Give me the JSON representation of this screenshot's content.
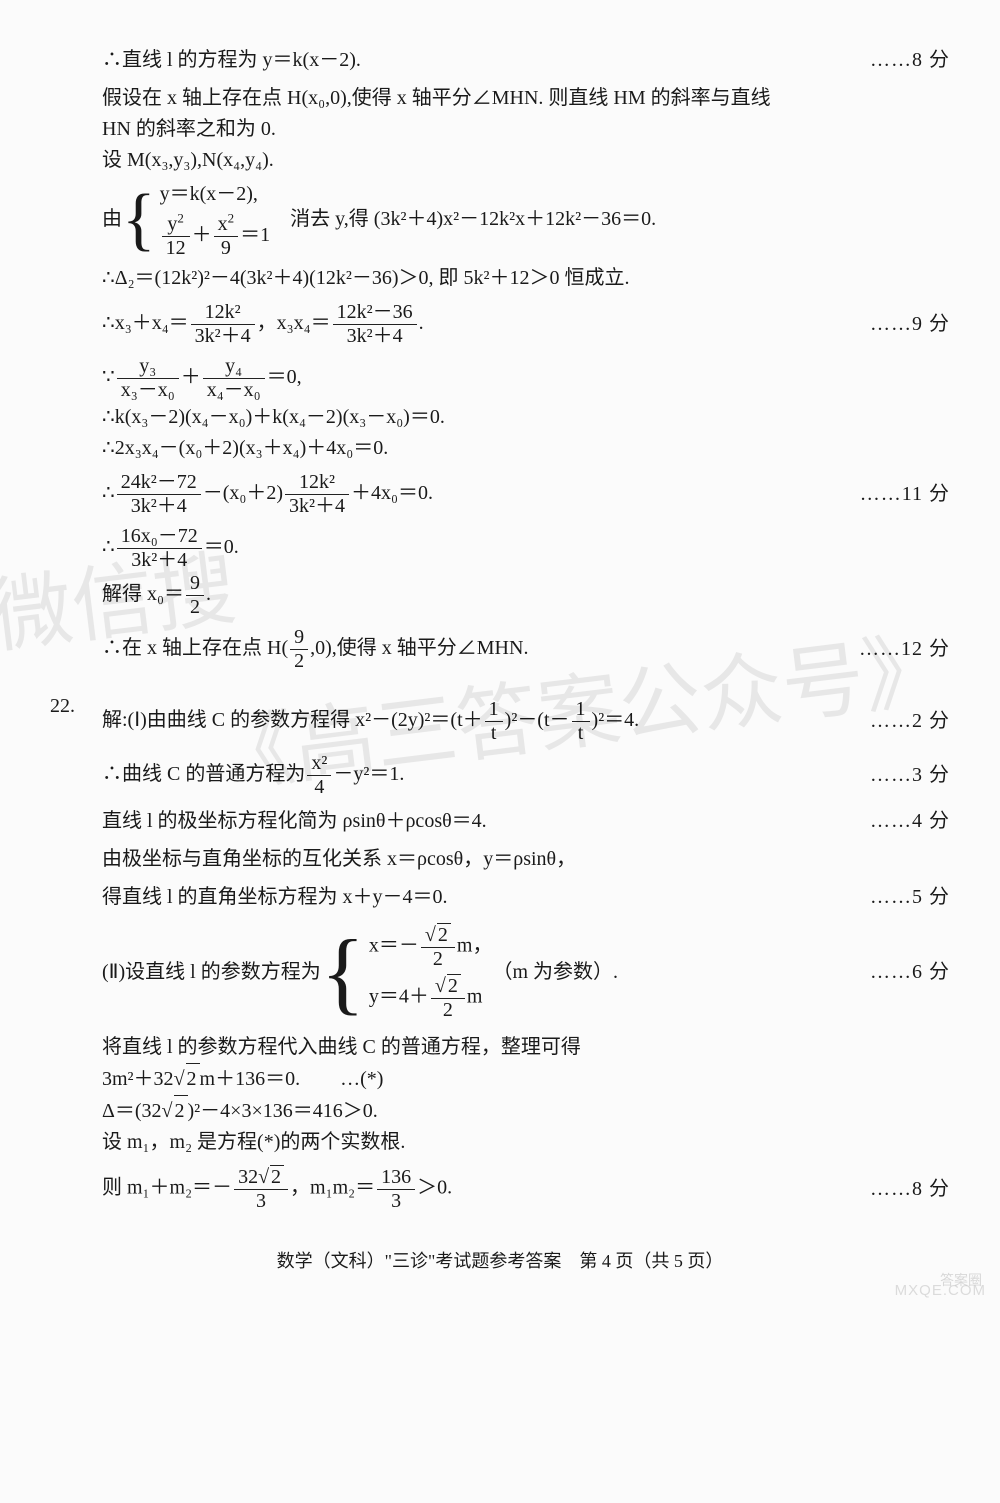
{
  "watermark1": "微信搜",
  "watermark2": "《高三答案公众号》",
  "logo1": "答案圈",
  "logo2": "MXQE.COM",
  "footer": "数学（文科）\"三诊\"考试题参考答案　第 4 页（共 5 页）",
  "lines": {
    "l1": "∴直线 l 的方程为 y＝k(x－2).",
    "p1": "……8 分",
    "l2": "假设在 x 轴上存在点 H(x₀,0),使得 x 轴平分∠MHN. 则直线 HM 的斜率与直线",
    "l3": "HN 的斜率之和为 0.",
    "l4": "设 M(x₃,y₃),N(x₄,y₄).",
    "l5_pre": "由",
    "l5_b1": "y＝k(x－2),",
    "l5_b2a": "y",
    "l5_b2b": "12",
    "l5_b2c": "x",
    "l5_b2d": "9",
    "l5_b2e": "＝1",
    "l5_post": "　消去 y,得 (3k²＋4)x²－12k²x＋12k²－36＝0.",
    "l6": "∴Δ₂＝(12k²)²－4(3k²＋4)(12k²－36)＞0, 即 5k²＋12＞0 恒成立.",
    "l7_pre": "∴x₃＋x₄＝",
    "l7_f1n": "12k²",
    "l7_f1d": "3k²＋4",
    "l7_mid": "，x₃x₄＝",
    "l7_f2n": "12k²－36",
    "l7_f2d": "3k²＋4",
    "l7_post": ".",
    "p7": "……9 分",
    "l8_pre": "∵",
    "l8_f1n": "y₃",
    "l8_f1d": "x₃－x₀",
    "l8_plus": "＋",
    "l8_f2n": "y₄",
    "l8_f2d": "x₄－x₀",
    "l8_post": "＝0,",
    "l9": "∴k(x₃－2)(x₄－x₀)＋k(x₄－2)(x₃－x₀)＝0.",
    "l10": "∴2x₃x₄－(x₀＋2)(x₃＋x₄)＋4x₀＝0.",
    "l11_pre": "∴",
    "l11_f1n": "24k²－72",
    "l11_f1d": "3k²＋4",
    "l11_mid": "－(x₀＋2)",
    "l11_f2n": "12k²",
    "l11_f2d": "3k²＋4",
    "l11_post": "＋4x₀＝0.",
    "p11": "……11 分",
    "l12_pre": "∴",
    "l12_f1n": "16x₀－72",
    "l12_f1d": "3k²＋4",
    "l12_post": "＝0.",
    "l13_pre": "解得 x₀＝",
    "l13_fn": "9",
    "l13_fd": "2",
    "l13_post": ".",
    "l14_pre": "∴在 x 轴上存在点 H(",
    "l14_fn": "9",
    "l14_fd": "2",
    "l14_post": ",0),使得 x 轴平分∠MHN.",
    "p14": "……12 分",
    "q22num": "22.",
    "q22_l1_pre": "解:(Ⅰ)由曲线 C 的参数方程得 x²－(2y)²＝(t＋",
    "q22_l1_f1n": "1",
    "q22_l1_f1d": "t",
    "q22_l1_mid": ")²－(t－",
    "q22_l1_f2n": "1",
    "q22_l1_f2d": "t",
    "q22_l1_post": ")²＝4.",
    "q22_p1": "……2 分",
    "q22_l2_pre": "∴曲线 C 的普通方程为",
    "q22_l2_fn": "x²",
    "q22_l2_fd": "4",
    "q22_l2_post": "－y²＝1.",
    "q22_p2": "……3 分",
    "q22_l3": "直线 l 的极坐标方程化简为 ρsinθ＋ρcosθ＝4.",
    "q22_p3": "……4 分",
    "q22_l4": "由极坐标与直角坐标的互化关系 x＝ρcosθ，y＝ρsinθ，",
    "q22_l5": "得直线 l 的直角坐标方程为 x＋y－4＝0.",
    "q22_p5": "……5 分",
    "q22_l6_pre": "(Ⅱ)设直线 l 的参数方程为",
    "q22_l6_b1a": "x＝－",
    "q22_l6_b1n": "2",
    "q22_l6_b1d": "2",
    "q22_l6_b1e": "m，",
    "q22_l6_b2a": "y＝4＋",
    "q22_l6_b2n": "2",
    "q22_l6_b2d": "2",
    "q22_l6_b2e": "m",
    "q22_l6_post": "（m 为参数）.",
    "q22_p6": "……6 分",
    "q22_l7": "将直线 l 的参数方程代入曲线 C 的普通方程，整理可得",
    "q22_l8_pre": "3m²＋32",
    "q22_l8_sq": "2",
    "q22_l8_post": "m＋136＝0.　　…(*)",
    "q22_l9_pre": "Δ＝(32",
    "q22_l9_sq": "2",
    "q22_l9_post": ")²－4×3×136＝416＞0.",
    "q22_l10": "设 m₁，m₂ 是方程(*)的两个实数根.",
    "q22_l11_pre": "则 m₁＋m₂＝－",
    "q22_l11_f1n_a": "32",
    "q22_l11_f1n_sq": "2",
    "q22_l11_f1d": "3",
    "q22_l11_mid": "，m₁m₂＝",
    "q22_l11_f2n": "136",
    "q22_l11_f2d": "3",
    "q22_l11_post": "＞0.",
    "q22_p11": "……8 分"
  }
}
